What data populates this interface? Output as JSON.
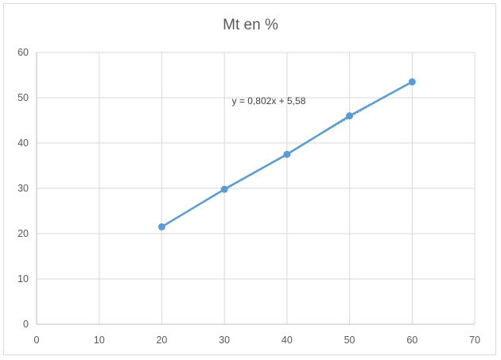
{
  "chart_data": {
    "type": "scatter",
    "title": "Mt en %",
    "xlabel": "",
    "ylabel": "",
    "xlim": [
      0,
      70
    ],
    "ylim": [
      0,
      60
    ],
    "xticks": [
      0,
      10,
      20,
      30,
      40,
      50,
      60,
      70
    ],
    "yticks": [
      0,
      10,
      20,
      30,
      40,
      50,
      60
    ],
    "grid": true,
    "series": [
      {
        "x": [
          20,
          30,
          40,
          50,
          60
        ],
        "y": [
          21.5,
          29.8,
          37.5,
          46.0,
          53.5
        ],
        "color": "#5b9bd5",
        "style": "line-markers"
      }
    ],
    "trendline": {
      "type": "linear",
      "slope": 0.802,
      "intercept": 5.58,
      "x_range": [
        20,
        60
      ],
      "equation_label": "y = 0,802x + 5,58"
    }
  }
}
